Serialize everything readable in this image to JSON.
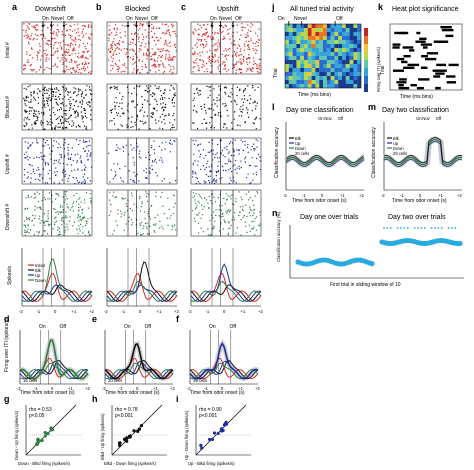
{
  "figure": {
    "panels": {
      "a": {
        "letter": "a",
        "title": "Downshift"
      },
      "b": {
        "letter": "b",
        "title": "Blocked"
      },
      "c": {
        "letter": "c",
        "title": "Upshift"
      },
      "d": {
        "letter": "d",
        "cells": "16 cells"
      },
      "e": {
        "letter": "e",
        "cells": "20 cells"
      },
      "f": {
        "letter": "f",
        "cells": "19 cells"
      },
      "g": {
        "letter": "g",
        "rho": "rho = 0.53",
        "p": "p<0.05",
        "xlabel": "Down - Blkd firing (spikes/s)",
        "ylabel": "Down - Up firing (spikes/s)"
      },
      "h": {
        "letter": "h",
        "rho": "rho = 0.78",
        "p": "p<0.001",
        "xlabel": "Blkd - Down firing (spikes/s)",
        "ylabel": "Blkd - Up firing (spikes/s)"
      },
      "i": {
        "letter": "i",
        "rho": "rho = 0.90",
        "p": "p<0.001",
        "xlabel": "Up - Blkd firing (spikes/s)",
        "ylabel": "Up - Down firing (spikes/s)"
      },
      "j": {
        "letter": "j",
        "title": "All tuned trial activity",
        "xlabel": "Time (ms bins)",
        "ylabel": "Trial",
        "cbar_label": "Firing over ITI (spikes/s)"
      },
      "k": {
        "letter": "k",
        "title": "Heat plot significance",
        "xlabel": "Time (ms bins)",
        "ylabel": "Trial"
      },
      "l": {
        "letter": "l",
        "title": "Day one classification",
        "cells": "20 cells"
      },
      "m": {
        "letter": "m",
        "title": "Day two classification",
        "cells": "29 cells"
      },
      "n": {
        "letter": "n",
        "title_left": "Day one over trials",
        "title_right": "Day two over trials",
        "xlabel": "First trial in sliding window of 10",
        "ylabel": "Classification accuracy (%)"
      }
    },
    "markers": {
      "on": "On",
      "novel": "Novel",
      "off": "Off",
      "nov": "Nov"
    },
    "raster_row_labels": [
      "Initial #",
      "Blocked #",
      "Upshift #",
      "Downshift #"
    ],
    "psth_ylabel": "Spikes/s",
    "firing_ylabel": "Firing over ITI (spikes/s)",
    "time_xlabel": "Time from odor onset (s)",
    "class_ylabel": "Classification accuracy",
    "time_ticks": [
      "-2",
      "-1",
      "0",
      "+1",
      "+2"
    ],
    "legend": {
      "initial": "Initial",
      "blk": "Blk",
      "up": "Up",
      "down": "Down",
      "blkd": "Blkd"
    },
    "colors": {
      "initial": "#d62728",
      "blocked": "#111111",
      "upshift": "#1f2f9e",
      "downshift": "#2e7d46",
      "error": "#b7b7b7",
      "scatter": "#1f2f9e",
      "cyan": "#29abe2"
    }
  }
}
